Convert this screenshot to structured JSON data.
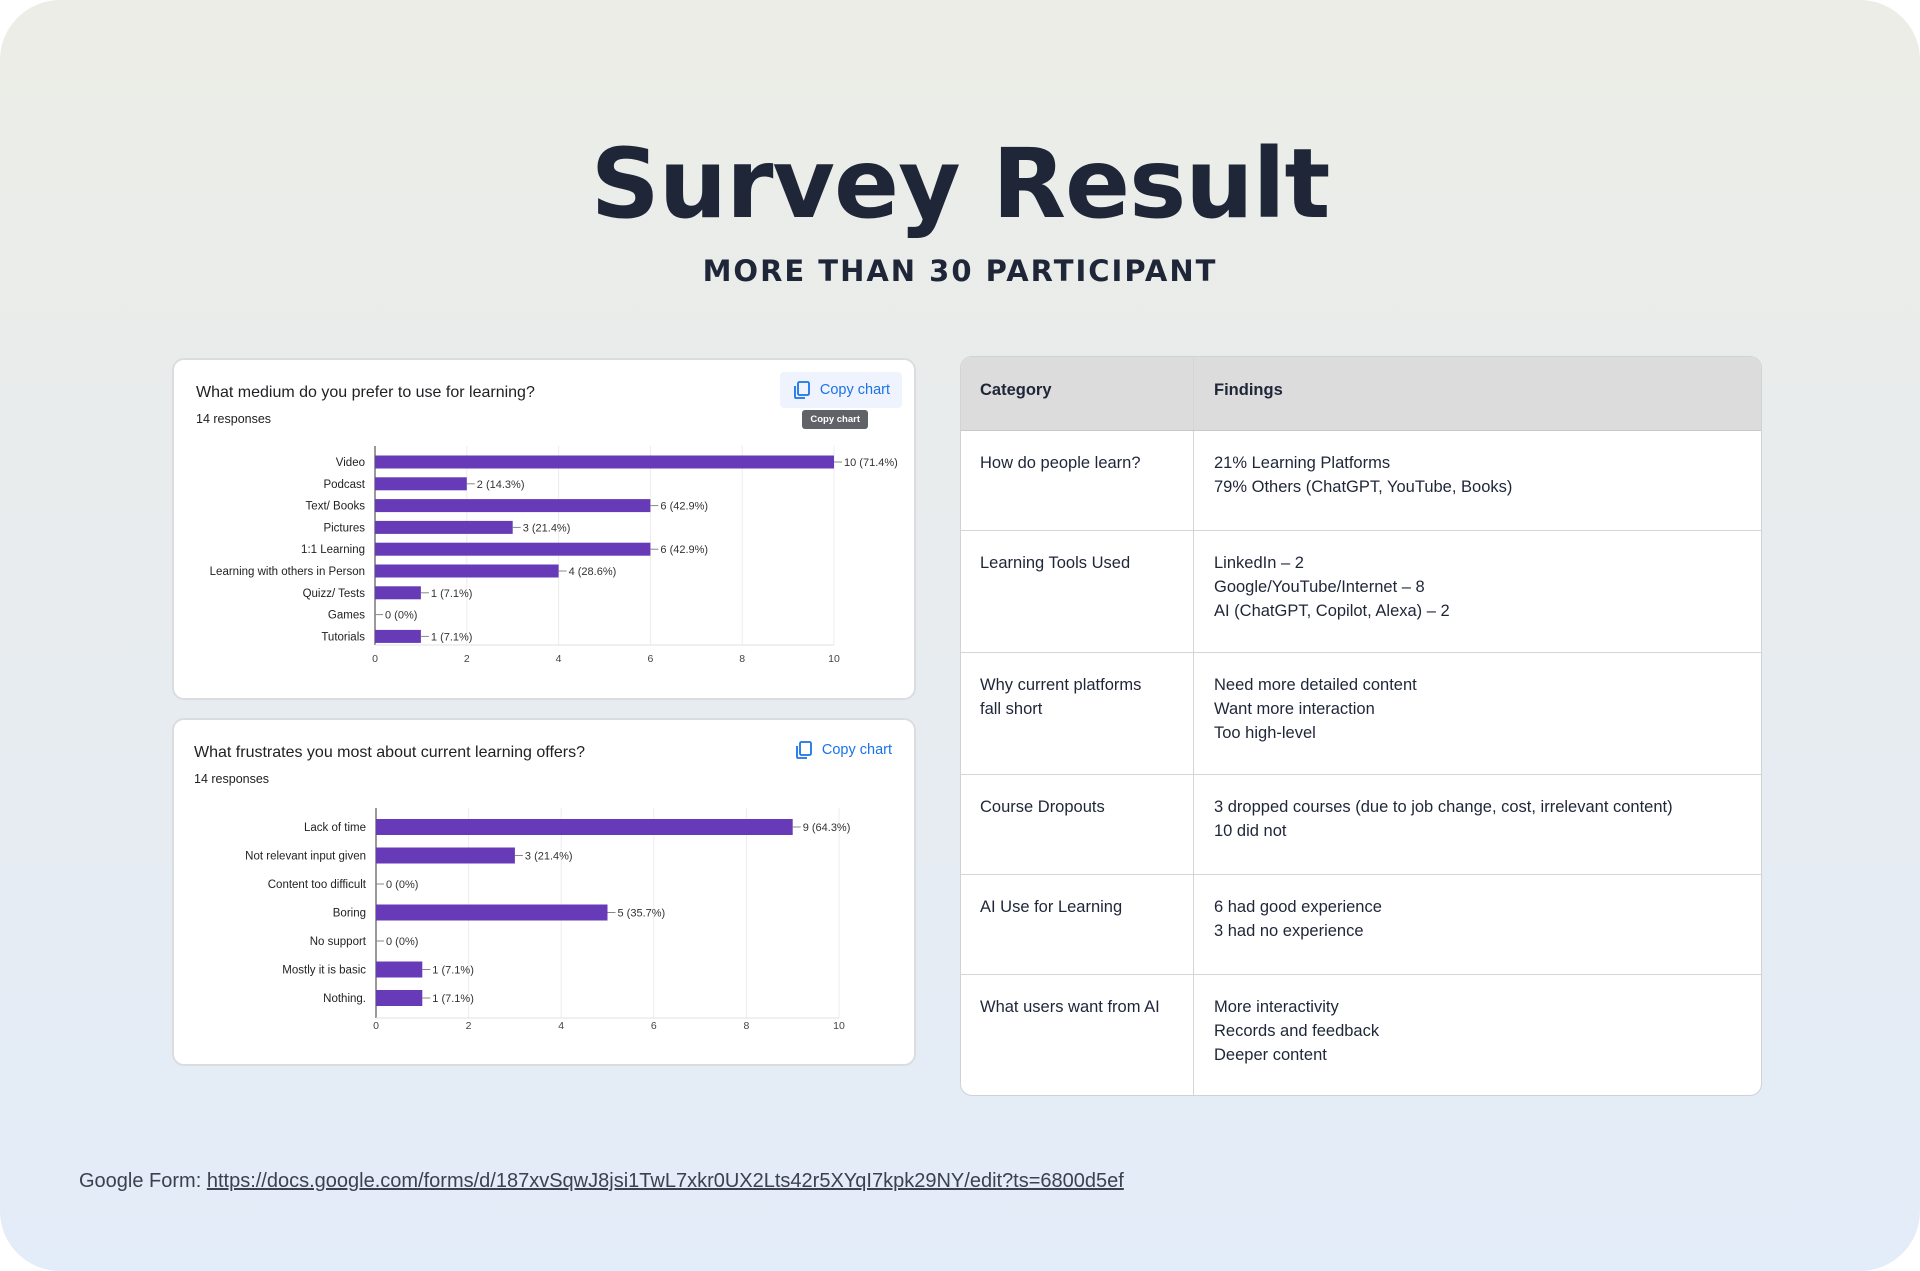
{
  "header": {
    "title": "Survey Result",
    "subtitle": "MORE THAN 30 PARTICIPANT"
  },
  "chart_data": [
    {
      "type": "bar",
      "orientation": "horizontal",
      "title": "What medium do you prefer to use for learning?",
      "responses": "14 responses",
      "copy_label": "Copy chart",
      "tooltip": "Copy chart",
      "categories": [
        "Video",
        "Podcast",
        "Text/ Books",
        "Pictures",
        "1:1 Learning",
        "Learning with others in Person",
        "Quizz/ Tests",
        "Games",
        "Tutorials"
      ],
      "values": [
        10,
        2,
        6,
        3,
        6,
        4,
        1,
        0,
        1
      ],
      "labels": [
        "10 (71.4%)",
        "2 (14.3%)",
        "6 (42.9%)",
        "3 (21.4%)",
        "6 (42.9%)",
        "4 (28.6%)",
        "1 (7.1%)",
        "0 (0%)",
        "1 (7.1%)"
      ],
      "xlim": [
        0,
        10
      ],
      "ticks": [
        0,
        2,
        4,
        6,
        8,
        10
      ],
      "color": "#673ab7"
    },
    {
      "type": "bar",
      "orientation": "horizontal",
      "title": "What frustrates you most about current learning offers?",
      "responses": "14 responses",
      "copy_label": "Copy chart",
      "categories": [
        "Lack of time",
        "Not relevant input given",
        "Content too difficult",
        "Boring",
        "No support",
        "Mostly it is basic",
        "Nothing."
      ],
      "values": [
        9,
        3,
        0,
        5,
        0,
        1,
        1
      ],
      "labels": [
        "9 (64.3%)",
        "3 (21.4%)",
        "0 (0%)",
        "5 (35.7%)",
        "0 (0%)",
        "1 (7.1%)",
        "1 (7.1%)"
      ],
      "xlim": [
        0,
        10
      ],
      "ticks": [
        0,
        2,
        4,
        6,
        8,
        10
      ],
      "color": "#673ab7"
    }
  ],
  "table": {
    "headers": [
      "Category",
      "Findings"
    ],
    "rows": [
      {
        "category": [
          "How do people learn?"
        ],
        "findings": [
          "21% Learning Platforms",
          "79% Others (ChatGPT, YouTube, Books)"
        ]
      },
      {
        "category": [
          "Learning Tools Used"
        ],
        "findings": [
          "LinkedIn – 2",
          "Google/YouTube/Internet – 8",
          "AI (ChatGPT, Copilot, Alexa) – 2"
        ]
      },
      {
        "category": [
          "Why current platforms",
          "fall short"
        ],
        "findings": [
          "Need more detailed content",
          "Want more interaction",
          "Too high-level"
        ]
      },
      {
        "category": [
          "Course Dropouts"
        ],
        "findings": [
          "3 dropped courses (due to job change, cost, irrelevant content)",
          "10 did not"
        ]
      },
      {
        "category": [
          "AI Use for Learning"
        ],
        "findings": [
          "6 had good experience",
          "3 had no experience"
        ]
      },
      {
        "category": [
          "What users want from AI"
        ],
        "findings": [
          "More interactivity",
          "Records and feedback",
          "Deeper content"
        ]
      }
    ]
  },
  "footer": {
    "label": "Google Form: ",
    "link": "https://docs.google.com/forms/d/187xvSqwJ8jsi1TwL7xkr0UX2Lts42r5XYqI7kpk29NY/edit?ts=6800d5ef"
  },
  "colors": {
    "bar": "#673ab7",
    "link_blue": "#1a73e8",
    "title": "#1f2638"
  }
}
